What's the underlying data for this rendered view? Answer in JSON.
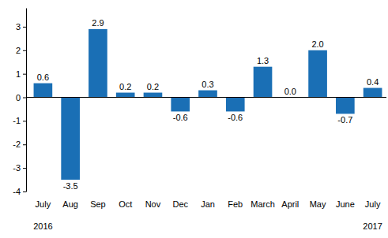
{
  "chart_data": {
    "type": "bar",
    "categories": [
      "July",
      "Aug",
      "Sep",
      "Oct",
      "Nov",
      "Dec",
      "Jan",
      "Feb",
      "March",
      "April",
      "May",
      "June",
      "July"
    ],
    "x_group_labels": [
      "2016",
      null,
      null,
      null,
      null,
      null,
      null,
      null,
      null,
      null,
      null,
      null,
      "2017"
    ],
    "values": [
      0.6,
      -3.5,
      2.9,
      0.2,
      0.2,
      -0.6,
      0.3,
      -0.6,
      1.3,
      0.0,
      2.0,
      -0.7,
      0.4
    ],
    "value_labels": [
      "0.6",
      "-3.5",
      "2.9",
      "0.2",
      "0.2",
      "-0.6",
      "0.3",
      "-0.6",
      "1.3",
      "0.0",
      "2.0",
      "-0.7",
      "0.4"
    ],
    "color": "#1a6fb5",
    "ylim": [
      -4,
      3.8
    ],
    "yticks": [
      -4,
      -3,
      -2,
      -1,
      0,
      1,
      2,
      3
    ],
    "grid": false,
    "data_labels": true
  }
}
